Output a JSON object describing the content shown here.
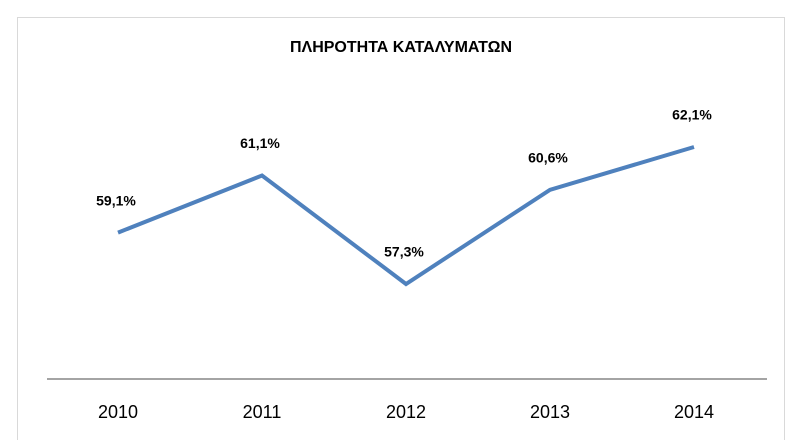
{
  "chart_data": {
    "type": "line",
    "title": "ΠΛΗΡΟΤΗΤΑ ΚΑΤΑΛΥΜΑΤΩΝ",
    "categories": [
      "2010",
      "2011",
      "2012",
      "2013",
      "2014"
    ],
    "values": [
      59.1,
      61.1,
      57.3,
      60.6,
      62.1
    ],
    "value_labels": [
      "59,1%",
      "61,1%",
      "57,3%",
      "60,6%",
      "62,1%"
    ],
    "color": "#4f81bd"
  }
}
